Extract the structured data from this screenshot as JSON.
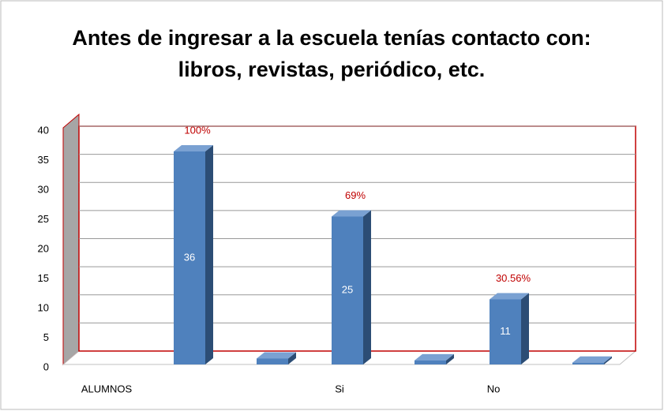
{
  "chart_data": {
    "type": "bar3d",
    "title": "Antes de ingresar a la escuela tenías contacto con: libros, revistas, periódico, etc.",
    "categories": [
      "ALUMNOS",
      "Si",
      "No"
    ],
    "series": [
      {
        "color": "#4f81bd",
        "values": [
          36,
          25,
          11
        ]
      },
      {
        "color": "#4f81bd",
        "values": [
          1,
          0.69,
          0.3056
        ],
        "value_labels": [
          "100%",
          "69%",
          "30.56%"
        ]
      }
    ],
    "ylim": [
      0,
      40
    ],
    "yticks": [
      0,
      5,
      10,
      15,
      20,
      25,
      30,
      35,
      40
    ],
    "grid": true
  }
}
